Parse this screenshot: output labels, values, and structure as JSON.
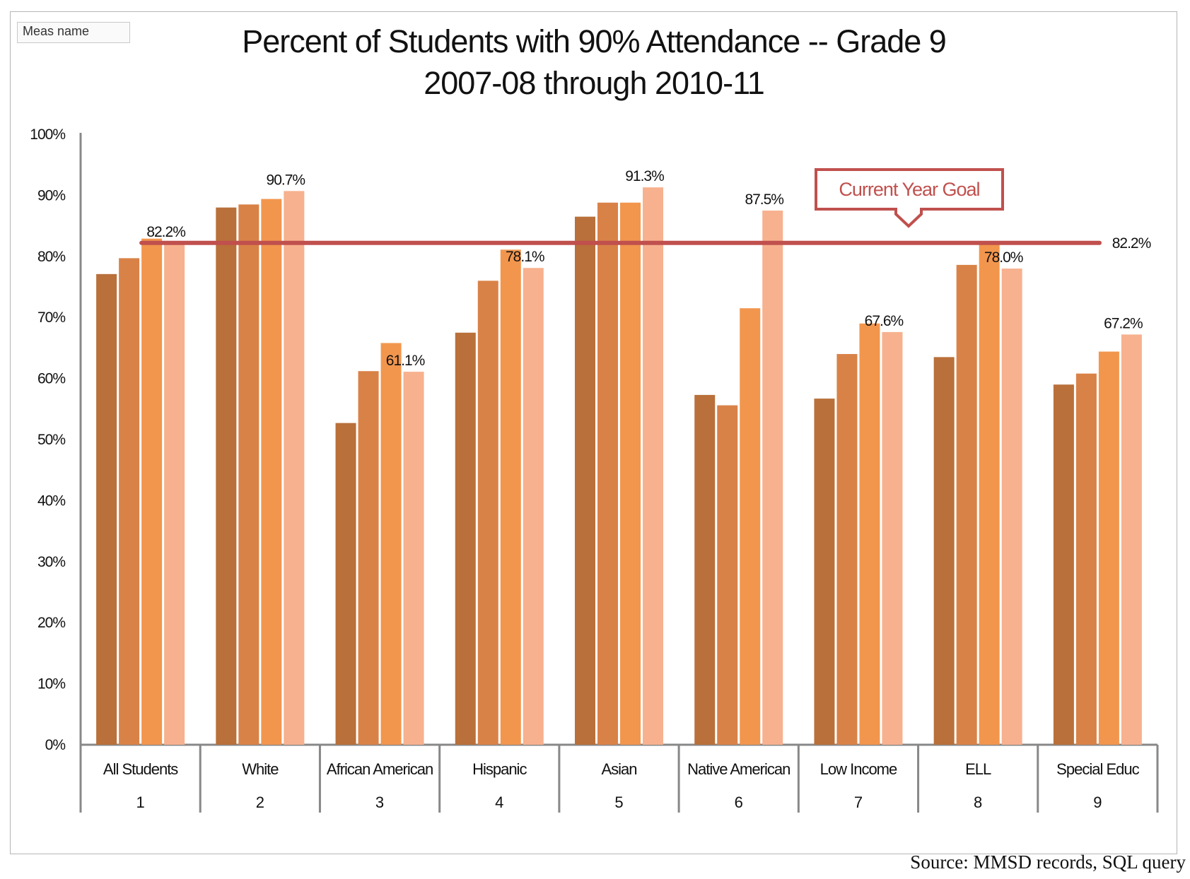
{
  "filter": {
    "label": "Meas name"
  },
  "source": "Source:  MMSD records, SQL query",
  "chart_data": {
    "type": "bar",
    "title": "Percent of Students with 90% Attendance -- Grade 9",
    "subtitle": "2007-08 through 2010-11",
    "xlabel": "",
    "ylabel": "",
    "ylim": [
      0,
      100
    ],
    "ytick_labels": [
      "0%",
      "10%",
      "20%",
      "30%",
      "40%",
      "50%",
      "60%",
      "70%",
      "80%",
      "90%",
      "100%"
    ],
    "categories": [
      "All Students",
      "White",
      "African American",
      "Hispanic",
      "Asian",
      "Native American",
      "Low Income",
      "ELL",
      "Special Educ"
    ],
    "category_numbers": [
      "1",
      "2",
      "3",
      "4",
      "5",
      "6",
      "7",
      "8",
      "9"
    ],
    "series": [
      {
        "color": "#b9703a",
        "values": [
          77.1,
          88.0,
          52.7,
          67.5,
          86.5,
          57.3,
          56.7,
          63.5,
          59.0
        ]
      },
      {
        "color": "#d98247",
        "values": [
          79.7,
          88.5,
          61.2,
          76.0,
          88.8,
          55.6,
          64.0,
          78.6,
          60.8
        ]
      },
      {
        "color": "#f2964e",
        "values": [
          82.9,
          89.4,
          65.8,
          81.1,
          88.8,
          71.5,
          69.0,
          82.2,
          64.4
        ]
      },
      {
        "color": "#f7b18e",
        "values": [
          82.2,
          90.7,
          61.1,
          78.1,
          91.3,
          87.5,
          67.6,
          78.0,
          67.2
        ]
      }
    ],
    "data_labels": [
      "82.2%",
      "90.7%",
      "61.1%",
      "78.1%",
      "91.3%",
      "87.5%",
      "67.6%",
      "78.0%",
      "67.2%"
    ],
    "goal": {
      "value": 82.2,
      "label": "82.2%",
      "callout": "Current Year Goal",
      "color": "#c0504d"
    },
    "legend": "none",
    "grid": false
  }
}
